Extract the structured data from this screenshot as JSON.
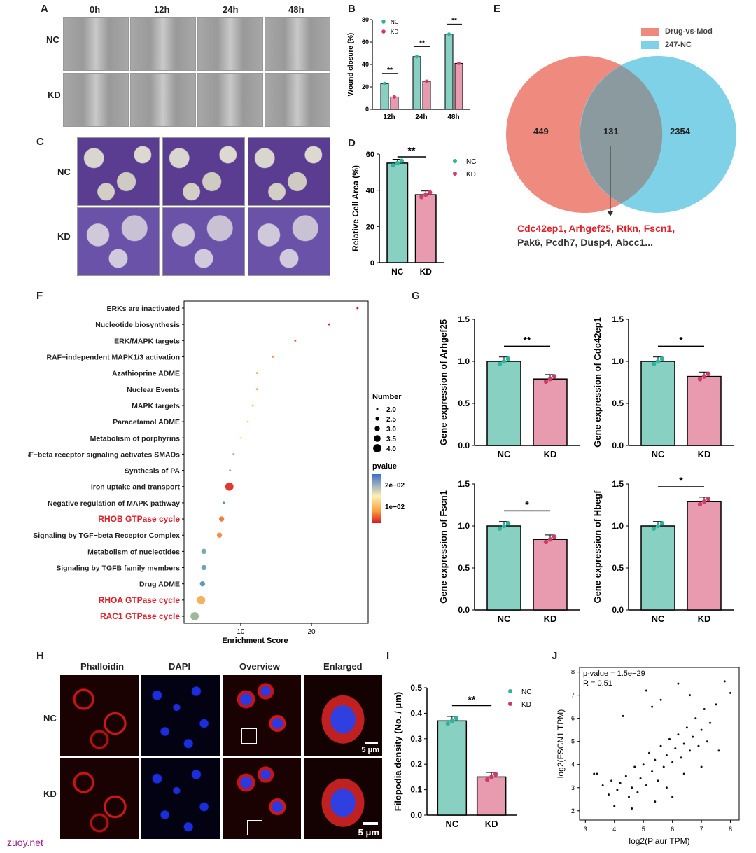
{
  "watermark": "zuoy.net",
  "colors": {
    "nc": "#88d1c2",
    "kd": "#e89aae",
    "nc_dot": "#2fb39c",
    "kd_dot": "#cc3d6b",
    "venn_left": "#ef8b7e",
    "venn_right": "#7fd1e8",
    "highlight": "#e0202a"
  },
  "panelA": {
    "letter": "A",
    "cols": [
      "0h",
      "12h",
      "24h",
      "48h"
    ],
    "rows": [
      "NC",
      "KD"
    ]
  },
  "panelB": {
    "letter": "B",
    "chart_data": {
      "type": "bar",
      "categories": [
        "12h",
        "24h",
        "48h"
      ],
      "series": [
        {
          "name": "NC",
          "values": [
            23,
            47,
            67
          ]
        },
        {
          "name": "KD",
          "values": [
            11,
            25,
            41
          ]
        }
      ],
      "ylabel": "Wound closure (%)",
      "ylim": [
        0,
        80
      ],
      "yticks": [
        "0",
        "20",
        "40",
        "60",
        "80"
      ],
      "significance": [
        "**",
        "**",
        "**"
      ]
    }
  },
  "panelC": {
    "letter": "C",
    "rows": [
      "NC",
      "KD"
    ]
  },
  "panelD": {
    "letter": "D",
    "chart_data": {
      "type": "bar",
      "categories": [
        "NC",
        "KD"
      ],
      "values": [
        55,
        37.5
      ],
      "ylabel": "Relative Cell Area (%)",
      "ylim": [
        0,
        60
      ],
      "yticks": [
        "0",
        "20",
        "40",
        "60"
      ],
      "legend": [
        "NC",
        "KD"
      ],
      "significance": "**"
    }
  },
  "panelE": {
    "letter": "E",
    "legend": [
      "Drug-vs-Mod",
      "247-NC"
    ],
    "left": "449",
    "middle": "131",
    "right": "2354",
    "genes_red": "Cdc42ep1, Arhgef25, Rtkn, Fscn1,",
    "genes_black": "Pak6, Pcdh7, Dusp4, Abcc1..."
  },
  "panelF": {
    "letter": "F",
    "chart_data": {
      "type": "scatter",
      "pathways": [
        "ERKs are inactivated",
        "Nucleotide biosynthesis",
        "ERK/MAPK targets",
        "RAF−independent MAPK1/3 activation",
        "Azathioprine ADME",
        "Nuclear Events",
        "MAPK targets",
        "Paracetamol ADME",
        "Metabolism of porphyrins",
        "TGF−beta receptor signaling activates SMADs",
        "Synthesis of PA",
        "Iron uptake and transport",
        "Negative regulation of MAPK pathway",
        "RHOB GTPase cycle",
        "Signaling by TGF−beta Receptor Complex",
        "Metabolism of nucleotides",
        "Signaling by TGFB family members",
        "Drug ADME",
        "RHOA GTPase cycle",
        "RAC1 GTPase cycle"
      ],
      "enrichment": [
        26.5,
        22.5,
        17.7,
        14.5,
        12.3,
        12.3,
        11.7,
        11.0,
        10.0,
        9.0,
        8.5,
        8.4,
        7.6,
        7.3,
        7.0,
        4.8,
        4.8,
        4.6,
        4.4,
        3.5
      ],
      "number": [
        2,
        2,
        2,
        2,
        2,
        2,
        2,
        2,
        2,
        2,
        2,
        4,
        2,
        3,
        3,
        3,
        3,
        3,
        4,
        4
      ],
      "pvalue": [
        0.002,
        0.003,
        0.006,
        0.009,
        0.011,
        0.011,
        0.012,
        0.013,
        0.014,
        0.02,
        0.021,
        0.004,
        0.025,
        0.008,
        0.009,
        0.022,
        0.023,
        0.024,
        0.011,
        0.02
      ],
      "xlabel": "Enrichment Score",
      "xticks": [
        "10",
        "20"
      ],
      "xlim": [
        2,
        28
      ],
      "highlighted": [
        "RHOB GTPase cycle",
        "RHOA GTPase cycle",
        "RAC1 GTPase cycle"
      ],
      "size_legend_title": "Number",
      "size_legend": [
        "2.0",
        "2.5",
        "3.0",
        "3.5",
        "4.0"
      ],
      "color_legend_title": "pvalue",
      "color_legend": [
        "2e−02",
        "1e−02"
      ]
    }
  },
  "panelG": {
    "letter": "G",
    "chart_data": [
      {
        "type": "bar",
        "categories": [
          "NC",
          "KD"
        ],
        "values": [
          1.0,
          0.79
        ],
        "ylabel": "Gene expression of Arhgef25",
        "ylim": [
          0,
          1.5
        ],
        "yticks": [
          "0.0",
          "0.5",
          "1.0",
          "1.5"
        ],
        "significance": "**"
      },
      {
        "type": "bar",
        "categories": [
          "NC",
          "KD"
        ],
        "values": [
          1.0,
          0.82
        ],
        "ylabel": "Gene expression of Cdc42ep1",
        "ylim": [
          0,
          1.5
        ],
        "yticks": [
          "0.0",
          "0.5",
          "1.0",
          "1.5"
        ],
        "significance": "*"
      },
      {
        "type": "bar",
        "categories": [
          "NC",
          "KD"
        ],
        "values": [
          1.0,
          0.84
        ],
        "ylabel": "Gene expression of Fscn1",
        "ylim": [
          0,
          1.5
        ],
        "yticks": [
          "0.0",
          "0.5",
          "1.0",
          "1.5"
        ],
        "significance": "*"
      },
      {
        "type": "bar",
        "categories": [
          "NC",
          "KD"
        ],
        "values": [
          1.0,
          1.29
        ],
        "ylabel": "Gene expression of Hbegf",
        "ylim": [
          0,
          1.5
        ],
        "yticks": [
          "0.0",
          "0.5",
          "1.0",
          "1.5"
        ],
        "significance": "*"
      }
    ]
  },
  "panelH": {
    "letter": "H",
    "cols": [
      "Phalloidin",
      "DAPI",
      "Overview",
      "Enlarged"
    ],
    "rows": [
      "NC",
      "KD"
    ],
    "scale": "5 μm"
  },
  "panelI": {
    "letter": "I",
    "chart_data": {
      "type": "bar",
      "categories": [
        "NC",
        "KD"
      ],
      "values": [
        0.37,
        0.15
      ],
      "ylabel": "Filopodia density (No. / μm)",
      "ylim": [
        0,
        0.5
      ],
      "yticks": [
        "0.0",
        "0.1",
        "0.2",
        "0.3",
        "0.4",
        "0.5"
      ],
      "legend": [
        "NC",
        "KD"
      ],
      "significance": "**"
    }
  },
  "panelJ": {
    "letter": "J",
    "annotation_p": "p-value = 1.5e−29",
    "annotation_r": "R = 0.51",
    "chart_data": {
      "type": "scatter",
      "xlabel": "log2(Plaur TPM)",
      "ylabel": "log2(FSCN1 TPM)",
      "xlim": [
        2.8,
        8.3
      ],
      "ylim": [
        1.6,
        8.2
      ],
      "xticks": [
        "3",
        "4",
        "5",
        "6",
        "7",
        "8"
      ],
      "yticks": [
        "2",
        "3",
        "4",
        "5",
        "6",
        "7",
        "8"
      ],
      "points": [
        [
          3.3,
          3.6
        ],
        [
          3.4,
          3.6
        ],
        [
          3.6,
          3.1
        ],
        [
          3.8,
          2.7
        ],
        [
          3.9,
          3.3
        ],
        [
          4.0,
          2.2
        ],
        [
          4.1,
          2.9
        ],
        [
          4.2,
          3.2
        ],
        [
          4.3,
          6.1
        ],
        [
          4.4,
          3.5
        ],
        [
          4.5,
          2.6
        ],
        [
          4.6,
          3.0
        ],
        [
          4.7,
          3.9
        ],
        [
          4.8,
          2.8
        ],
        [
          4.9,
          3.4
        ],
        [
          5.0,
          4.0
        ],
        [
          5.1,
          3.1
        ],
        [
          5.2,
          4.5
        ],
        [
          5.3,
          3.7
        ],
        [
          5.4,
          4.2
        ],
        [
          5.5,
          3.3
        ],
        [
          5.6,
          4.8
        ],
        [
          5.7,
          3.9
        ],
        [
          5.8,
          4.4
        ],
        [
          5.9,
          5.1
        ],
        [
          6.0,
          4.1
        ],
        [
          6.1,
          4.7
        ],
        [
          6.2,
          5.3
        ],
        [
          6.3,
          4.3
        ],
        [
          6.4,
          4.9
        ],
        [
          6.5,
          5.6
        ],
        [
          6.6,
          4.6
        ],
        [
          6.7,
          5.2
        ],
        [
          6.8,
          6.0
        ],
        [
          6.9,
          4.8
        ],
        [
          7.0,
          5.5
        ],
        [
          7.1,
          6.4
        ],
        [
          7.2,
          5.0
        ],
        [
          7.3,
          5.8
        ],
        [
          7.5,
          6.6
        ],
        [
          7.8,
          7.6
        ],
        [
          8.0,
          7.1
        ],
        [
          5.1,
          7.2
        ],
        [
          5.3,
          6.5
        ],
        [
          5.6,
          6.8
        ],
        [
          6.2,
          7.5
        ],
        [
          6.6,
          7.0
        ],
        [
          6.0,
          2.6
        ],
        [
          5.4,
          2.4
        ],
        [
          4.6,
          2.1
        ],
        [
          5.8,
          3.0
        ],
        [
          6.4,
          3.6
        ],
        [
          7.0,
          3.9
        ],
        [
          7.6,
          4.6
        ]
      ]
    }
  }
}
